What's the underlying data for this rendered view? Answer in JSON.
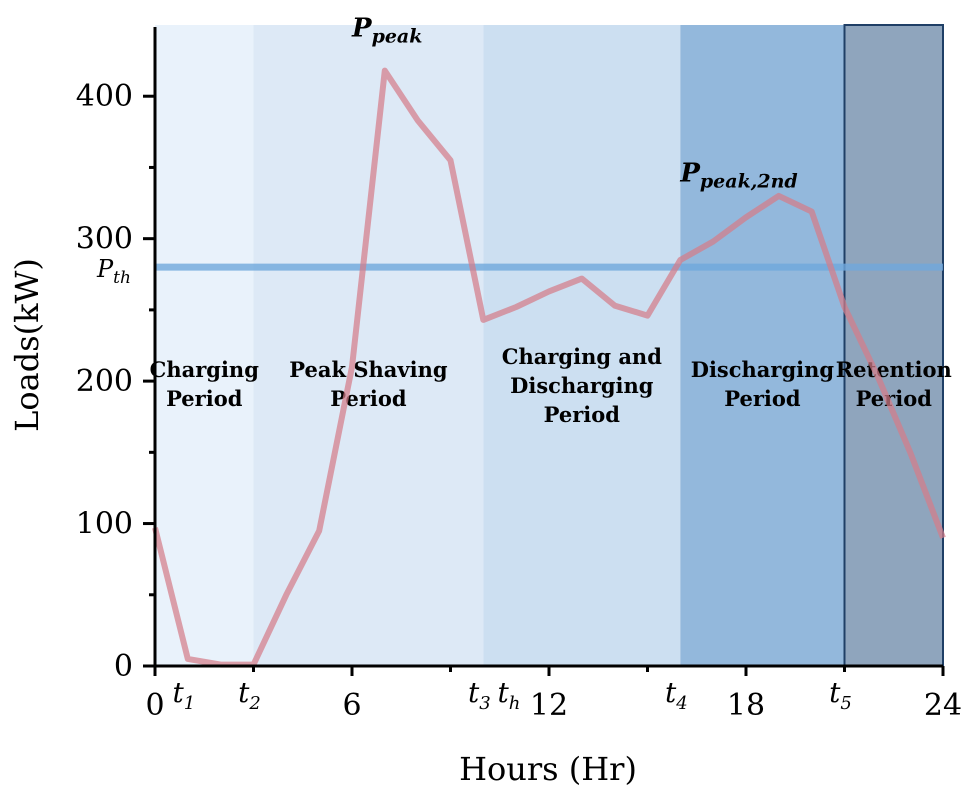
{
  "chart_data": {
    "type": "line",
    "xlabel": "Hours (Hr)",
    "ylabel": "Loads(kW)",
    "xlim": [
      0,
      24
    ],
    "ylim": [
      0,
      450
    ],
    "x_ticks": [
      0,
      6,
      12,
      18,
      24
    ],
    "y_ticks": [
      0,
      100,
      200,
      300,
      400
    ],
    "series": [
      {
        "color": "#d47d89",
        "x": [
          0,
          1,
          2,
          3,
          4,
          5,
          6,
          7,
          8,
          9,
          10,
          11,
          12,
          13,
          14,
          15,
          16,
          17,
          18,
          19,
          20,
          21,
          22,
          23,
          24
        ],
        "y": [
          97,
          5,
          1,
          1,
          50,
          95,
          210,
          418,
          383,
          355,
          243,
          252,
          263,
          272,
          253,
          246,
          285,
          298,
          315,
          330,
          319,
          252,
          204,
          150,
          90
        ]
      }
    ],
    "threshold": {
      "value": 280,
      "color": "#6fa8dc"
    },
    "regions": [
      {
        "x0": 0,
        "x1": 3,
        "label": [
          "Charging",
          "Period"
        ],
        "color": "#e9f2fb"
      },
      {
        "x0": 3,
        "x1": 10,
        "label": [
          "Peak Shaving",
          "Period"
        ],
        "color": "#dde9f6"
      },
      {
        "x0": 10,
        "x1": 16,
        "label": [
          "Charging and",
          "Discharging",
          "Period"
        ],
        "color": "#ccdff1"
      },
      {
        "x0": 16,
        "x1": 21,
        "label": [
          "Discharging",
          "Period"
        ],
        "color": "#93b8dc"
      },
      {
        "x0": 21,
        "x1": 24,
        "label": [
          "Retention",
          "Period"
        ],
        "color": "#8fa5bd"
      }
    ],
    "time_markers": [
      {
        "main": "t",
        "sub": "1",
        "x": 1
      },
      {
        "main": "t",
        "sub": "2",
        "x": 3
      },
      {
        "main": "t",
        "sub": "3",
        "x": 10
      },
      {
        "main": "t",
        "sub": "h",
        "x": 10.9
      },
      {
        "main": "t",
        "sub": "4",
        "x": 16
      },
      {
        "main": "t",
        "sub": "5",
        "x": 21
      }
    ],
    "annotations": [
      {
        "main": "P",
        "sub": "peak",
        "x": 6.0,
        "y": 442
      },
      {
        "main": "P",
        "sub": "peak,2nd",
        "x": 16.0,
        "y": 340
      },
      {
        "main": "P",
        "sub": "th",
        "x": -1.8,
        "y": 272
      }
    ]
  }
}
